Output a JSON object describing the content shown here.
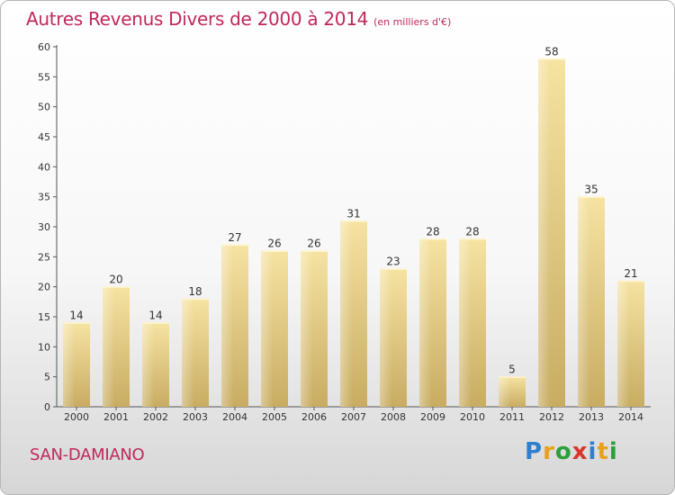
{
  "chart_data": {
    "type": "bar",
    "title": "Autres Revenus Divers de 2000 à 2014",
    "subtitle": "(en milliers d'€)",
    "categories": [
      "2000",
      "2001",
      "2002",
      "2003",
      "2004",
      "2005",
      "2006",
      "2007",
      "2008",
      "2009",
      "2010",
      "2011",
      "2012",
      "2013",
      "2014"
    ],
    "values": [
      14,
      20,
      14,
      18,
      27,
      26,
      26,
      31,
      23,
      28,
      28,
      5,
      58,
      35,
      21
    ],
    "ylim": [
      0,
      60
    ],
    "yticks": [
      0,
      5,
      10,
      15,
      20,
      25,
      30,
      35,
      40,
      45,
      50,
      55,
      60
    ],
    "grid": false,
    "bar_color": "#e9d28a",
    "data_labels": true
  },
  "place_label": "SAN-DAMIANO",
  "logo": {
    "text": "Proxiti",
    "letter_colors": [
      "#2f7fd0",
      "#e8a11c",
      "#2e9e3a",
      "#d9362b",
      "#2f7fd0",
      "#e8a11c",
      "#2e9e3a"
    ]
  },
  "colors": {
    "accent": "#c0285a",
    "axis": "#555555"
  }
}
